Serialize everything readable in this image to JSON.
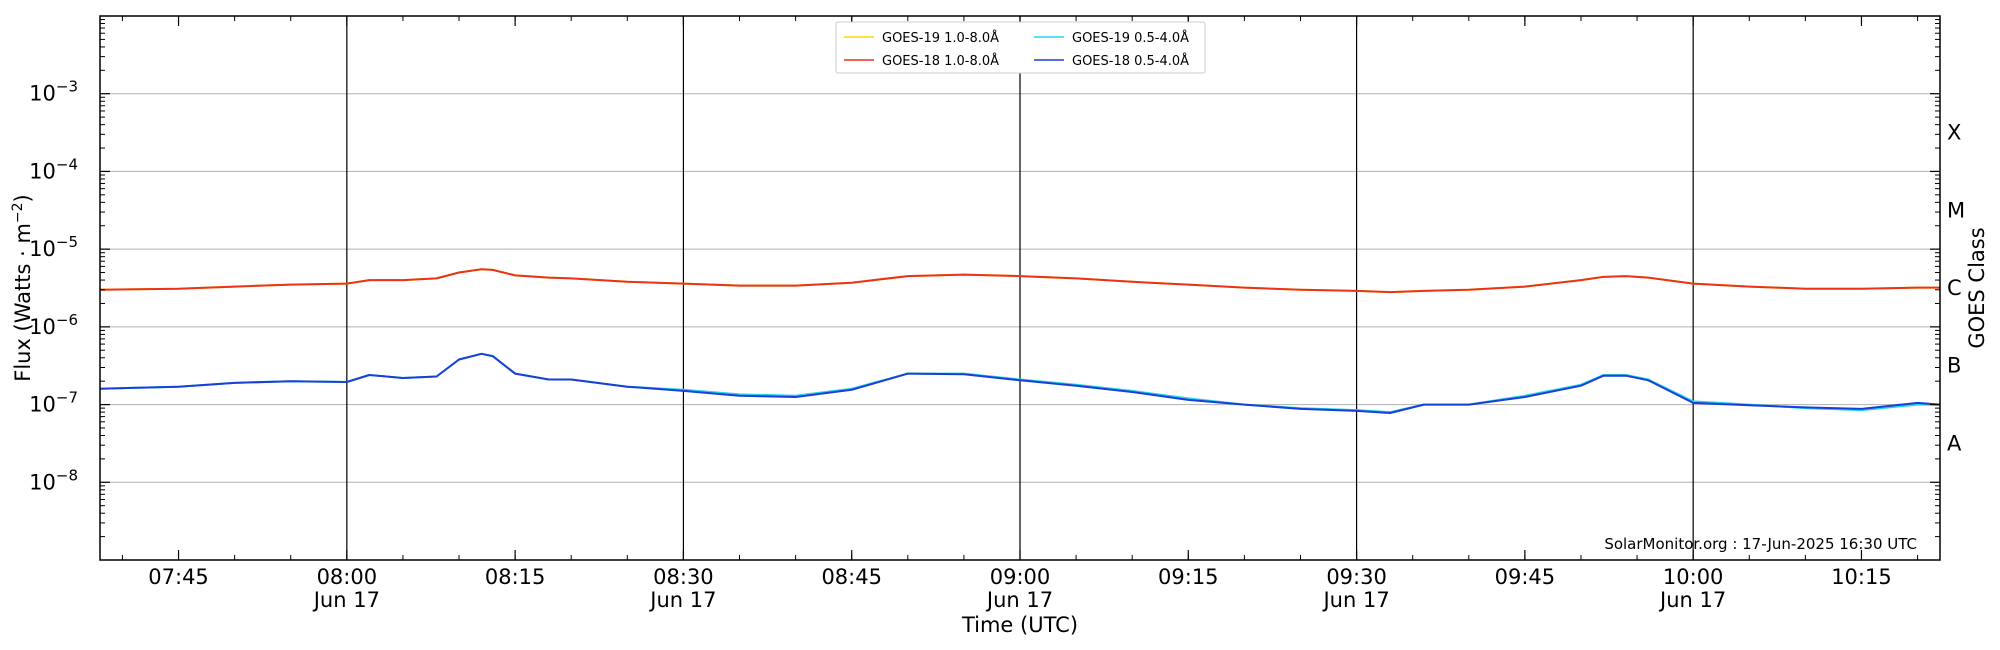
{
  "chart_data": {
    "type": "line",
    "xlabel": "Time (UTC)",
    "ylabel": "Flux (Watts · m",
    "ylabel_exponent": "−2",
    "ylabel_close": ")",
    "right_label": "GOES Class",
    "y_scale": "log",
    "ylim": [
      1e-09,
      0.01
    ],
    "xlim": [
      "07:38",
      "10:22"
    ],
    "grid": "horizontal at decades; vertical lines every 30 min",
    "legend_position": "top-center",
    "credit": "SolarMonitor.org : 17-Jun-2025 16:30 UTC",
    "x_ticks": [
      {
        "time": "07:45",
        "line1": "07:45",
        "line2": ""
      },
      {
        "time": "08:00",
        "line1": "08:00",
        "line2": "Jun 17"
      },
      {
        "time": "08:15",
        "line1": "08:15",
        "line2": ""
      },
      {
        "time": "08:30",
        "line1": "08:30",
        "line2": "Jun 17"
      },
      {
        "time": "08:45",
        "line1": "08:45",
        "line2": ""
      },
      {
        "time": "09:00",
        "line1": "09:00",
        "line2": "Jun 17"
      },
      {
        "time": "09:15",
        "line1": "09:15",
        "line2": ""
      },
      {
        "time": "09:30",
        "line1": "09:30",
        "line2": "Jun 17"
      },
      {
        "time": "09:45",
        "line1": "09:45",
        "line2": ""
      },
      {
        "time": "10:00",
        "line1": "10:00",
        "line2": "Jun 17"
      },
      {
        "time": "10:15",
        "line1": "10:15",
        "line2": ""
      }
    ],
    "y_ticks": [
      {
        "value": 0.001,
        "base": "10",
        "exp": "−3"
      },
      {
        "value": 0.0001,
        "base": "10",
        "exp": "−4"
      },
      {
        "value": 1e-05,
        "base": "10",
        "exp": "−5"
      },
      {
        "value": 1e-06,
        "base": "10",
        "exp": "−6"
      },
      {
        "value": 1e-07,
        "base": "10",
        "exp": "−7"
      },
      {
        "value": 1e-08,
        "base": "10",
        "exp": "−8"
      }
    ],
    "class_labels": [
      {
        "label": "X",
        "value": 0.000316
      },
      {
        "label": "M",
        "value": 3.16e-05
      },
      {
        "label": "C",
        "value": 3.16e-06
      },
      {
        "label": "B",
        "value": 3.16e-07
      },
      {
        "label": "A",
        "value": 3.16e-08
      }
    ],
    "x": [
      "07:38",
      "07:45",
      "07:50",
      "07:55",
      "08:00",
      "08:02",
      "08:05",
      "08:08",
      "08:10",
      "08:12",
      "08:13",
      "08:15",
      "08:18",
      "08:20",
      "08:25",
      "08:30",
      "08:35",
      "08:40",
      "08:45",
      "08:50",
      "08:55",
      "09:00",
      "09:05",
      "09:10",
      "09:15",
      "09:20",
      "09:25",
      "09:30",
      "09:33",
      "09:36",
      "09:40",
      "09:45",
      "09:50",
      "09:52",
      "09:54",
      "09:56",
      "10:00",
      "10:05",
      "10:10",
      "10:15",
      "10:20",
      "10:22"
    ],
    "series": [
      {
        "name": "GOES-19 1.0-8.0Å",
        "color": "#ffd700",
        "values": [
          3e-06,
          3.1e-06,
          3.3e-06,
          3.5e-06,
          3.6e-06,
          4e-06,
          4e-06,
          4.2e-06,
          5e-06,
          5.5e-06,
          5.4e-06,
          4.6e-06,
          4.3e-06,
          4.2e-06,
          3.8e-06,
          3.6e-06,
          3.4e-06,
          3.4e-06,
          3.7e-06,
          4.5e-06,
          4.7e-06,
          4.5e-06,
          4.2e-06,
          3.8e-06,
          3.5e-06,
          3.2e-06,
          3e-06,
          2.9e-06,
          2.8e-06,
          2.9e-06,
          3e-06,
          3.3e-06,
          4e-06,
          4.4e-06,
          4.5e-06,
          4.3e-06,
          3.6e-06,
          3.3e-06,
          3.1e-06,
          3.1e-06,
          3.2e-06,
          3.2e-06
        ]
      },
      {
        "name": "GOES-19 0.5-4.0Å",
        "color": "#22d3ee",
        "values": [
          1.6e-07,
          1.7e-07,
          1.9e-07,
          2e-07,
          1.95e-07,
          2.4e-07,
          2.2e-07,
          2.3e-07,
          3.8e-07,
          4.5e-07,
          4.2e-07,
          2.5e-07,
          2.1e-07,
          2.1e-07,
          1.7e-07,
          1.55e-07,
          1.35e-07,
          1.3e-07,
          1.6e-07,
          2.5e-07,
          2.5e-07,
          2.1e-07,
          1.8e-07,
          1.5e-07,
          1.2e-07,
          1e-07,
          9e-08,
          8.5e-08,
          8e-08,
          1e-07,
          1e-07,
          1.3e-07,
          1.8e-07,
          2.4e-07,
          2.4e-07,
          2.1e-07,
          1.1e-07,
          1e-07,
          9e-08,
          8.5e-08,
          1e-07,
          1e-07
        ]
      },
      {
        "name": "GOES-18 1.0-8.0Å",
        "color": "#e8341a",
        "values": [
          3e-06,
          3.1e-06,
          3.3e-06,
          3.5e-06,
          3.6e-06,
          4e-06,
          4e-06,
          4.2e-06,
          5e-06,
          5.5e-06,
          5.4e-06,
          4.6e-06,
          4.3e-06,
          4.2e-06,
          3.8e-06,
          3.6e-06,
          3.4e-06,
          3.4e-06,
          3.7e-06,
          4.5e-06,
          4.7e-06,
          4.5e-06,
          4.2e-06,
          3.8e-06,
          3.5e-06,
          3.2e-06,
          3e-06,
          2.9e-06,
          2.8e-06,
          2.9e-06,
          3e-06,
          3.3e-06,
          4e-06,
          4.4e-06,
          4.5e-06,
          4.3e-06,
          3.6e-06,
          3.3e-06,
          3.1e-06,
          3.1e-06,
          3.2e-06,
          3.2e-06
        ]
      },
      {
        "name": "GOES-18 0.5-4.0Å",
        "color": "#1a3fd6",
        "values": [
          1.6e-07,
          1.7e-07,
          1.9e-07,
          2e-07,
          1.95e-07,
          2.4e-07,
          2.2e-07,
          2.3e-07,
          3.8e-07,
          4.5e-07,
          4.2e-07,
          2.5e-07,
          2.1e-07,
          2.1e-07,
          1.7e-07,
          1.5e-07,
          1.3e-07,
          1.25e-07,
          1.55e-07,
          2.5e-07,
          2.45e-07,
          2.05e-07,
          1.75e-07,
          1.45e-07,
          1.15e-07,
          1e-07,
          8.8e-08,
          8.3e-08,
          7.8e-08,
          1e-07,
          1e-07,
          1.25e-07,
          1.75e-07,
          2.35e-07,
          2.35e-07,
          2.05e-07,
          1.05e-07,
          9.8e-08,
          9.2e-08,
          8.8e-08,
          1.05e-07,
          1e-07
        ]
      }
    ],
    "legend_order": [
      0,
      1,
      2,
      3
    ]
  }
}
